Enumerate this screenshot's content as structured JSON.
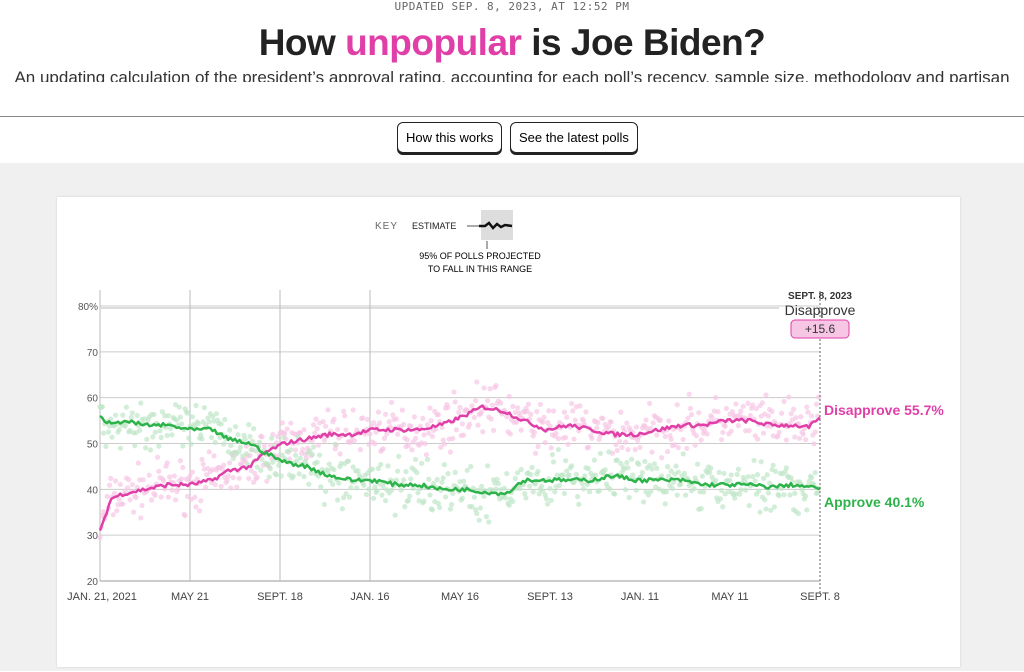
{
  "header": {
    "updated": "UPDATED SEP. 8, 2023, AT 12:52 PM",
    "title_pre": "How ",
    "title_highlight": "unpopular",
    "title_post": " is Joe Biden?",
    "subtitle": "An updating calculation of the president’s approval rating, accounting for each poll’s recency, sample size, methodology and partisan lean."
  },
  "buttons": {
    "how": "How this works",
    "polls": "See the latest polls"
  },
  "key": {
    "label": "KEY",
    "estimate": "ESTIMATE",
    "range": [
      "95% OF POLLS PROJECTED",
      "TO FALL IN THIS RANGE"
    ]
  },
  "colors": {
    "approve": "#2db34a",
    "disapprove": "#e03fa8",
    "approve_light": "#bfe6c8",
    "disapprove_light": "#f6c6e4"
  },
  "chart_data": {
    "type": "line",
    "title": "How unpopular is Joe Biden?",
    "x_unit": "days since Jan. 21, 2021",
    "xlim": [
      0,
      960
    ],
    "ylim": [
      20,
      80
    ],
    "yticks": [
      20,
      30,
      40,
      50,
      60,
      70,
      80
    ],
    "ytick_labels": [
      "20",
      "30",
      "40",
      "50",
      "60",
      "70",
      "80%"
    ],
    "xticks": [
      0,
      120,
      240,
      360,
      480,
      600,
      720,
      840,
      960
    ],
    "xtick_labels": [
      "JAN. 21, 2021",
      "MAY 21",
      "SEPT. 18",
      "JAN. 16",
      "MAY 16",
      "SEPT. 13",
      "JAN. 11",
      "MAY 11",
      "SEPT. 8"
    ],
    "vertical_gridlines_at": [
      0,
      120,
      240,
      360
    ],
    "series": [
      {
        "name": "Disapprove",
        "final_label": "Disapprove 55.7%",
        "points": [
          [
            0,
            31
          ],
          [
            15,
            38
          ],
          [
            30,
            39
          ],
          [
            60,
            40
          ],
          [
            90,
            41
          ],
          [
            120,
            41
          ],
          [
            150,
            42
          ],
          [
            170,
            44
          ],
          [
            200,
            45
          ],
          [
            220,
            48
          ],
          [
            245,
            50
          ],
          [
            275,
            51
          ],
          [
            305,
            52
          ],
          [
            335,
            52
          ],
          [
            365,
            53
          ],
          [
            395,
            53
          ],
          [
            425,
            53
          ],
          [
            455,
            54
          ],
          [
            485,
            56
          ],
          [
            510,
            58
          ],
          [
            540,
            57
          ],
          [
            565,
            55
          ],
          [
            595,
            53
          ],
          [
            625,
            54
          ],
          [
            655,
            53
          ],
          [
            685,
            52
          ],
          [
            715,
            52
          ],
          [
            745,
            53
          ],
          [
            775,
            54
          ],
          [
            805,
            54
          ],
          [
            835,
            55
          ],
          [
            865,
            55
          ],
          [
            895,
            54
          ],
          [
            925,
            54
          ],
          [
            945,
            53.5
          ],
          [
            960,
            55.7
          ]
        ]
      },
      {
        "name": "Approve",
        "final_label": "Approve 40.1%",
        "points": [
          [
            0,
            56
          ],
          [
            15,
            54
          ],
          [
            30,
            55
          ],
          [
            60,
            54
          ],
          [
            90,
            54
          ],
          [
            120,
            53
          ],
          [
            150,
            53
          ],
          [
            170,
            51
          ],
          [
            200,
            50
          ],
          [
            220,
            48
          ],
          [
            245,
            46
          ],
          [
            275,
            45
          ],
          [
            305,
            43
          ],
          [
            335,
            42
          ],
          [
            365,
            42
          ],
          [
            395,
            41
          ],
          [
            425,
            41
          ],
          [
            455,
            40
          ],
          [
            485,
            40
          ],
          [
            510,
            39.5
          ],
          [
            540,
            39
          ],
          [
            565,
            42
          ],
          [
            595,
            42
          ],
          [
            625,
            42
          ],
          [
            655,
            42
          ],
          [
            685,
            43
          ],
          [
            715,
            42
          ],
          [
            745,
            42
          ],
          [
            775,
            42
          ],
          [
            805,
            41
          ],
          [
            835,
            41
          ],
          [
            865,
            41
          ],
          [
            895,
            40.5
          ],
          [
            925,
            41
          ],
          [
            945,
            40.5
          ],
          [
            960,
            40.1
          ]
        ]
      }
    ],
    "annotation": {
      "date": "SEPT. 8, 2023",
      "label": "Disapprove",
      "margin": "+15.6"
    }
  }
}
